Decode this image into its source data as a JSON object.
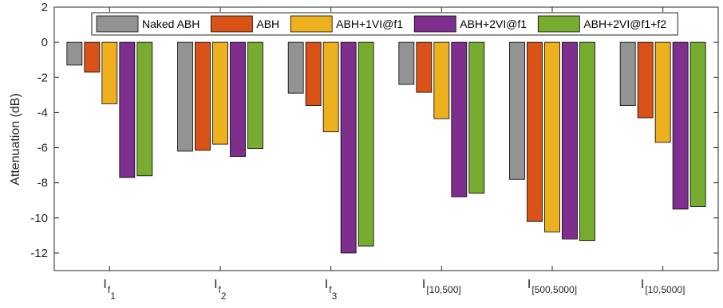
{
  "chart_data": {
    "type": "bar",
    "ylabel": "Attenuation (dB)",
    "xlabel": "",
    "ylim": [
      -13,
      2
    ],
    "yticks": [
      2,
      0,
      -2,
      -4,
      -6,
      -8,
      -10,
      -12
    ],
    "grid": false,
    "legend_position": "top",
    "categories": [
      {
        "main": "I",
        "sub": "f",
        "subsub": "1"
      },
      {
        "main": "I",
        "sub": "f",
        "subsub": "2"
      },
      {
        "main": "I",
        "sub": "f",
        "subsub": "3"
      },
      {
        "main": "I",
        "sub": "[10,500]",
        "subsub": ""
      },
      {
        "main": "I",
        "sub": "[500,5000]",
        "subsub": ""
      },
      {
        "main": "I",
        "sub": "[10,5000]",
        "subsub": ""
      }
    ],
    "series": [
      {
        "name": "Naked ABH",
        "color": "#939393",
        "values": [
          -1.3,
          -6.2,
          -2.9,
          -2.4,
          -7.8,
          -3.6
        ]
      },
      {
        "name": "ABH",
        "color": "#D95319",
        "values": [
          -1.7,
          -6.15,
          -3.6,
          -2.85,
          -10.2,
          -4.3
        ]
      },
      {
        "name": "ABH+1VI@f1",
        "color": "#EDB120",
        "values": [
          -3.5,
          -5.8,
          -5.1,
          -4.35,
          -10.8,
          -5.7
        ]
      },
      {
        "name": "ABH+2VI@f1",
        "color": "#7E2F8E",
        "values": [
          -7.7,
          -6.5,
          -12.0,
          -8.8,
          -11.2,
          -9.5
        ]
      },
      {
        "name": "ABH+2VI@f1+f2",
        "color": "#77AC30",
        "values": [
          -7.6,
          -6.05,
          -11.6,
          -8.6,
          -11.3,
          -9.35
        ]
      }
    ]
  }
}
